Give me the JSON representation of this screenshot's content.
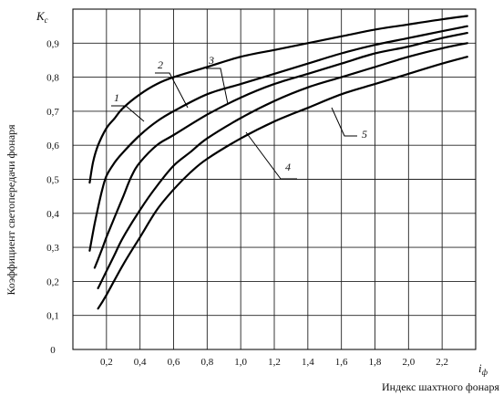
{
  "chart_data": {
    "type": "line",
    "title": "",
    "ylabel": "Коэффициент светопередачи фонаря",
    "ylabel_symbol": "K",
    "ylabel_symbol_sub": "с",
    "xlabel": "Индекс шахтного фонаря",
    "xlabel_symbol": "i",
    "xlabel_symbol_sub": "ф",
    "xlim": [
      0,
      2.4
    ],
    "ylim": [
      0,
      1.0
    ],
    "grid": true,
    "x_ticks": [
      "0,2",
      "0,4",
      "0,6",
      "0,8",
      "1,0",
      "1,2",
      "1,4",
      "1,6",
      "1,8",
      "2,0",
      "2,2"
    ],
    "x_tick_values": [
      0.2,
      0.4,
      0.6,
      0.8,
      1.0,
      1.2,
      1.4,
      1.6,
      1.8,
      2.0,
      2.2
    ],
    "y_ticks": [
      "0",
      "0,1",
      "0,2",
      "0,3",
      "0,4",
      "0,5",
      "0,6",
      "0,7",
      "0,8",
      "0,9"
    ],
    "y_tick_values": [
      0,
      0.1,
      0.2,
      0.3,
      0.4,
      0.5,
      0.6,
      0.7,
      0.8,
      0.9
    ],
    "series": [
      {
        "name": "1",
        "x": [
          0.1,
          0.12,
          0.15,
          0.2,
          0.25,
          0.3,
          0.4,
          0.5,
          0.6,
          0.8,
          1.0,
          1.2,
          1.4,
          1.6,
          1.8,
          2.0,
          2.2,
          2.35
        ],
        "y": [
          0.49,
          0.55,
          0.6,
          0.65,
          0.68,
          0.71,
          0.75,
          0.78,
          0.8,
          0.83,
          0.86,
          0.88,
          0.9,
          0.92,
          0.94,
          0.955,
          0.97,
          0.98
        ]
      },
      {
        "name": "2",
        "x": [
          0.1,
          0.13,
          0.17,
          0.2,
          0.25,
          0.3,
          0.4,
          0.5,
          0.6,
          0.8,
          1.0,
          1.2,
          1.4,
          1.6,
          1.8,
          2.0,
          2.2,
          2.35
        ],
        "y": [
          0.29,
          0.37,
          0.46,
          0.51,
          0.55,
          0.58,
          0.63,
          0.67,
          0.7,
          0.75,
          0.78,
          0.81,
          0.84,
          0.87,
          0.895,
          0.915,
          0.935,
          0.95
        ]
      },
      {
        "name": "3",
        "x": [
          0.13,
          0.17,
          0.2,
          0.25,
          0.3,
          0.35,
          0.4,
          0.5,
          0.6,
          0.8,
          1.0,
          1.2,
          1.4,
          1.6,
          1.8,
          2.0,
          2.2,
          2.35
        ],
        "y": [
          0.24,
          0.29,
          0.33,
          0.39,
          0.45,
          0.51,
          0.55,
          0.6,
          0.63,
          0.69,
          0.74,
          0.78,
          0.81,
          0.84,
          0.87,
          0.89,
          0.915,
          0.93
        ]
      },
      {
        "name": "4",
        "x": [
          0.15,
          0.2,
          0.25,
          0.3,
          0.4,
          0.5,
          0.6,
          0.7,
          0.8,
          1.0,
          1.2,
          1.4,
          1.6,
          1.8,
          2.0,
          2.2,
          2.35
        ],
        "y": [
          0.18,
          0.23,
          0.28,
          0.33,
          0.41,
          0.48,
          0.54,
          0.58,
          0.62,
          0.68,
          0.73,
          0.77,
          0.8,
          0.83,
          0.86,
          0.885,
          0.9
        ]
      },
      {
        "name": "5",
        "x": [
          0.15,
          0.2,
          0.3,
          0.4,
          0.5,
          0.6,
          0.7,
          0.8,
          1.0,
          1.2,
          1.4,
          1.6,
          1.8,
          2.0,
          2.2,
          2.35
        ],
        "y": [
          0.12,
          0.16,
          0.25,
          0.33,
          0.41,
          0.47,
          0.52,
          0.56,
          0.62,
          0.67,
          0.71,
          0.75,
          0.78,
          0.81,
          0.84,
          0.86
        ]
      }
    ]
  }
}
